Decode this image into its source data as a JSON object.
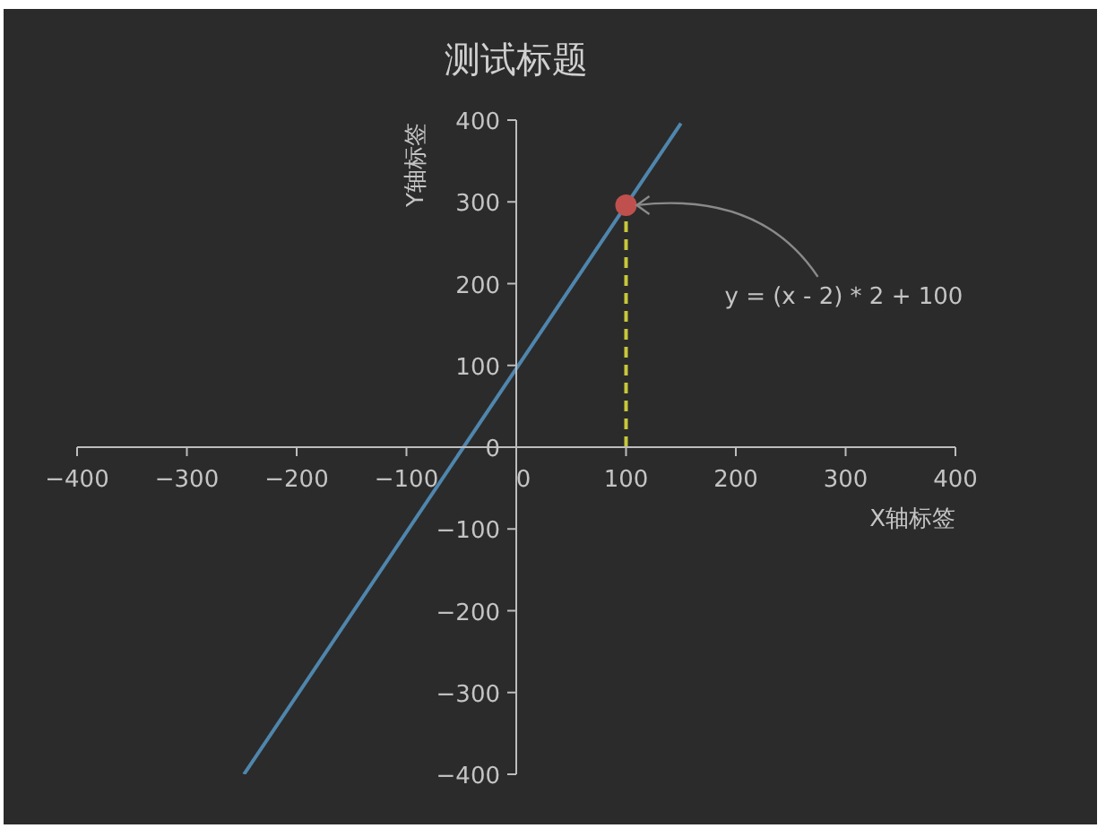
{
  "chart_data": {
    "type": "line",
    "title": "测试标题",
    "xlabel": "X轴标签",
    "ylabel": "Y轴标签",
    "xlim": [
      -400,
      400
    ],
    "ylim": [
      -400,
      400
    ],
    "xticks": [
      {
        "value": -400,
        "label": "−400"
      },
      {
        "value": -300,
        "label": "−300"
      },
      {
        "value": -200,
        "label": "−200"
      },
      {
        "value": -100,
        "label": "−100"
      },
      0,
      100,
      200,
      300,
      400
    ],
    "yticks": [
      {
        "value": -400,
        "label": "−400"
      },
      {
        "value": -300,
        "label": "−300"
      },
      {
        "value": -200,
        "label": "−200"
      },
      {
        "value": -100,
        "label": "−100"
      },
      0,
      100,
      200,
      300,
      400
    ],
    "series": [
      {
        "color": "#4f86ad",
        "x": [
          -248,
          150
        ],
        "values": [
          -400,
          396
        ]
      },
      {
        "type": "line",
        "color": "#c8c83a",
        "line_style": "dashed",
        "x": [
          100,
          100
        ],
        "values": [
          0,
          296
        ]
      },
      {
        "type": "scatter",
        "color": "#c0504d",
        "marker": "circle",
        "x": [
          100
        ],
        "values": [
          296
        ]
      }
    ],
    "annotations": [
      {
        "text": "y = (x - 2) * 2 + 100",
        "x": 100,
        "y": 296
      }
    ]
  }
}
